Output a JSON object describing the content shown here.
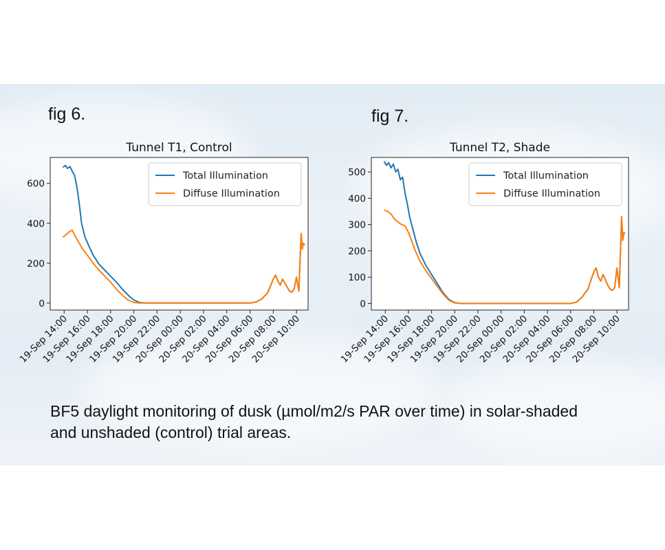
{
  "fig_labels": [
    "fig 6.",
    "fig 7."
  ],
  "caption_lines": [
    "BF5 daylight monitoring of dusk (µmol/m2/s PAR over time) in solar-shaded",
    "and unshaded (control) trial areas."
  ],
  "colors": {
    "total": "#1f77b4",
    "diffuse": "#ff7f0e"
  },
  "chart_data": [
    {
      "type": "line",
      "title": "Tunnel T1, Control",
      "xlabel": "",
      "ylabel": "",
      "x_ticks": [
        "19-Sep 14:00",
        "19-Sep 16:00",
        "19-Sep 18:00",
        "19-Sep 20:00",
        "19-Sep 22:00",
        "20-Sep 00:00",
        "20-Sep 02:00",
        "20-Sep 04:00",
        "20-Sep 06:00",
        "20-Sep 08:00",
        "20-Sep 10:00"
      ],
      "xlim": [
        -1.2,
        21.0
      ],
      "y_ticks": [
        0,
        200,
        400,
        600
      ],
      "ylim": [
        -35,
        730
      ],
      "legend_position": "upper right",
      "series": [
        {
          "name": "Total Illumination",
          "x": [
            -0.1,
            0.1,
            0.3,
            0.5,
            0.7,
            0.9,
            1.1,
            1.3,
            1.5,
            1.8,
            2.1,
            2.5,
            3,
            3.5,
            4,
            4.5,
            5,
            5.5,
            6,
            6.5,
            7,
            8,
            10,
            12,
            14,
            16,
            16.5,
            17,
            17.5,
            17.8,
            18,
            18.2,
            18.4,
            18.6,
            18.8,
            19,
            19.2,
            19.4,
            19.6,
            19.8,
            20,
            20.2,
            20.3,
            20.4,
            20.5,
            20.6,
            20.7
          ],
          "y": [
            680,
            690,
            675,
            685,
            660,
            640,
            580,
            500,
            400,
            330,
            290,
            240,
            195,
            165,
            135,
            105,
            70,
            40,
            15,
            3,
            0,
            0,
            0,
            0,
            0,
            0,
            5,
            20,
            50,
            90,
            120,
            140,
            110,
            90,
            120,
            100,
            80,
            60,
            55,
            70,
            130,
            60,
            200,
            340,
            280,
            300,
            290
          ]
        },
        {
          "name": "Diffuse Illumination",
          "x": [
            -0.1,
            0.2,
            0.5,
            0.7,
            1.0,
            1.3,
            1.6,
            2,
            2.5,
            3,
            3.5,
            4,
            4.5,
            5,
            5.5,
            6,
            6.5,
            7,
            8,
            10,
            12,
            14,
            16,
            16.5,
            17,
            17.5,
            17.8,
            18,
            18.2,
            18.4,
            18.6,
            18.8,
            19,
            19.2,
            19.4,
            19.6,
            19.8,
            20,
            20.2,
            20.3,
            20.4,
            20.5,
            20.6,
            20.7
          ],
          "y": [
            330,
            345,
            360,
            365,
            330,
            300,
            270,
            240,
            200,
            165,
            135,
            105,
            70,
            40,
            15,
            3,
            0,
            0,
            0,
            0,
            0,
            0,
            0,
            5,
            20,
            50,
            90,
            120,
            140,
            110,
            90,
            120,
            100,
            80,
            60,
            55,
            70,
            130,
            60,
            200,
            350,
            270,
            300,
            290
          ]
        }
      ]
    },
    {
      "type": "line",
      "title": "Tunnel T2, Shade",
      "xlabel": "",
      "ylabel": "",
      "x_ticks": [
        "19-Sep 14:00",
        "19-Sep 16:00",
        "19-Sep 18:00",
        "19-Sep 20:00",
        "19-Sep 22:00",
        "20-Sep 00:00",
        "20-Sep 02:00",
        "20-Sep 04:00",
        "20-Sep 06:00",
        "20-Sep 08:00",
        "20-Sep 10:00"
      ],
      "xlim": [
        -1.2,
        21.0
      ],
      "y_ticks": [
        0,
        100,
        200,
        300,
        400,
        500
      ],
      "ylim": [
        -25,
        555
      ],
      "legend_position": "upper right",
      "series": [
        {
          "name": "Total Illumination",
          "x": [
            -0.1,
            0.1,
            0.3,
            0.5,
            0.7,
            0.9,
            1.1,
            1.3,
            1.5,
            1.7,
            1.9,
            2.1,
            2.4,
            2.7,
            3,
            3.5,
            4,
            4.5,
            5,
            5.5,
            6,
            6.5,
            7,
            8,
            10,
            12,
            14,
            16,
            16.5,
            17,
            17.5,
            17.8,
            18,
            18.2,
            18.4,
            18.6,
            18.8,
            19,
            19.2,
            19.4,
            19.6,
            19.8,
            20,
            20.2,
            20.3,
            20.4,
            20.5,
            20.6,
            20.7
          ],
          "y": [
            540,
            525,
            535,
            515,
            530,
            500,
            510,
            470,
            480,
            420,
            380,
            330,
            280,
            230,
            190,
            145,
            110,
            75,
            40,
            15,
            3,
            0,
            0,
            0,
            0,
            0,
            0,
            0,
            5,
            25,
            55,
            95,
            120,
            135,
            100,
            85,
            110,
            90,
            70,
            55,
            50,
            60,
            135,
            60,
            190,
            330,
            240,
            270,
            265
          ]
        },
        {
          "name": "Diffuse Illumination",
          "x": [
            -0.1,
            0.2,
            0.5,
            0.8,
            1.1,
            1.4,
            1.7,
            2,
            2.3,
            2.6,
            3,
            3.5,
            4,
            4.5,
            5,
            5.5,
            6,
            6.5,
            7,
            8,
            10,
            12,
            14,
            16,
            16.5,
            17,
            17.5,
            17.8,
            18,
            18.2,
            18.4,
            18.6,
            18.8,
            19,
            19.2,
            19.4,
            19.6,
            19.8,
            20,
            20.2,
            20.3,
            20.4,
            20.5,
            20.6,
            20.7
          ],
          "y": [
            355,
            350,
            340,
            320,
            310,
            300,
            295,
            270,
            235,
            200,
            160,
            125,
            95,
            65,
            35,
            12,
            2,
            0,
            0,
            0,
            0,
            0,
            0,
            0,
            5,
            25,
            55,
            95,
            120,
            135,
            100,
            85,
            110,
            90,
            70,
            55,
            50,
            60,
            135,
            60,
            190,
            330,
            240,
            270,
            265
          ]
        }
      ]
    }
  ]
}
